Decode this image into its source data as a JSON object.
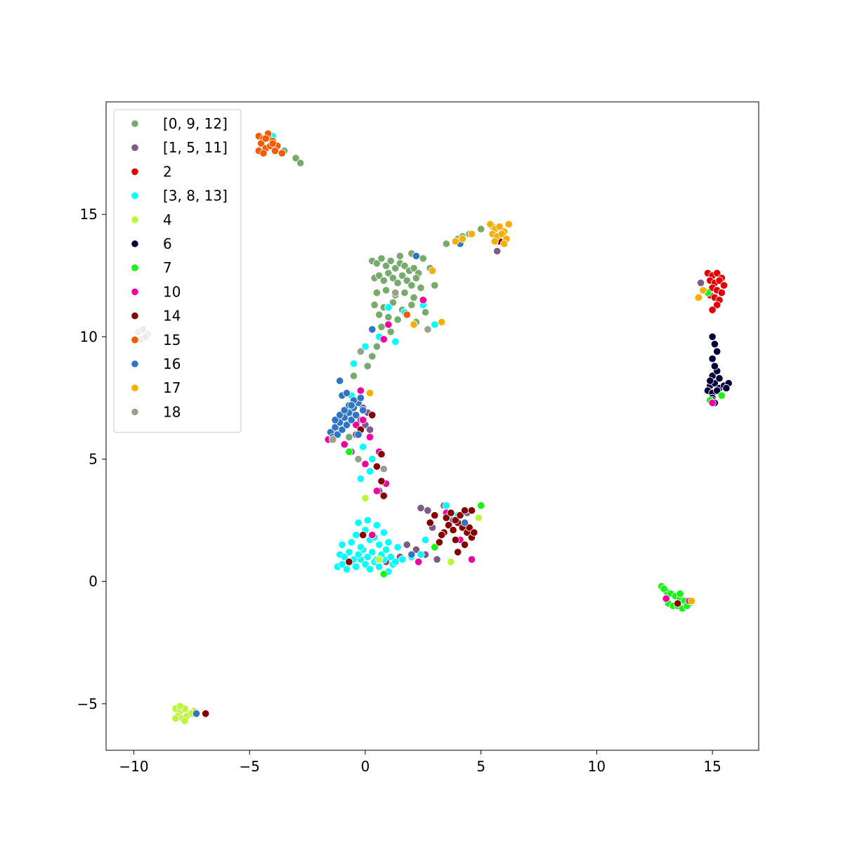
{
  "chart_data": {
    "type": "scatter",
    "title": "",
    "xlabel": "",
    "ylabel": "",
    "xlim": [
      -11.2,
      17.0
    ],
    "ylim": [
      -6.9,
      19.6
    ],
    "grid": false,
    "legend_position": "top-left",
    "x_ticks": [
      -10,
      -5,
      0,
      5,
      10,
      15
    ],
    "x_tick_labels": [
      "−10",
      "−5",
      "0",
      "5",
      "10",
      "15"
    ],
    "y_ticks": [
      -5,
      0,
      5,
      10,
      15
    ],
    "y_tick_labels": [
      "−5",
      "0",
      "5",
      "10",
      "15"
    ],
    "series": [
      {
        "name": "[0, 9, 12]",
        "color": "#77AB6D",
        "x": [
          0.3,
          0.5,
          0.7,
          0.9,
          1.1,
          1.3,
          1.5,
          1.7,
          1.9,
          2.1,
          2.3,
          0.4,
          0.6,
          0.8,
          1.0,
          1.2,
          1.4,
          1.6,
          1.8,
          2.0,
          2.2,
          2.4,
          0.5,
          0.9,
          1.3,
          1.7,
          2.1,
          2.5,
          0.4,
          0.8,
          1.2,
          1.6,
          2.0,
          0.6,
          1.0,
          1.4,
          1.8,
          2.2,
          2.6,
          1.5,
          2.0,
          2.5,
          2.8,
          3.0,
          0.7,
          1.1,
          0.5,
          0.3,
          0.1,
          -0.5,
          3.5,
          4.0,
          4.5,
          5.0,
          5.5,
          -3.0,
          -3.5,
          -2.8,
          4.2,
          -0.7
        ],
        "y": [
          13.1,
          13.0,
          13.2,
          12.9,
          13.1,
          12.8,
          13.0,
          12.9,
          12.7,
          12.8,
          12.6,
          12.4,
          12.5,
          12.3,
          12.6,
          12.4,
          12.2,
          12.5,
          12.3,
          12.1,
          12.4,
          12.0,
          11.8,
          11.9,
          11.7,
          11.8,
          11.6,
          11.5,
          11.3,
          11.2,
          11.4,
          11.1,
          11.3,
          10.9,
          10.8,
          10.7,
          10.9,
          10.6,
          11.0,
          13.3,
          13.4,
          13.2,
          12.8,
          12.1,
          10.4,
          10.2,
          9.6,
          9.2,
          8.8,
          8.4,
          13.8,
          14.0,
          14.2,
          14.4,
          14.5,
          17.3,
          17.6,
          17.1,
          14.1,
          5.9
        ]
      },
      {
        "name": "[1, 5, 11]",
        "color": "#7E5A8A",
        "x": [
          -0.3,
          -0.1,
          0.1,
          -0.5,
          -0.2,
          0.0,
          0.2,
          -0.4,
          0.6,
          2.4,
          2.7,
          3.0,
          3.4,
          3.8,
          1.8,
          2.2,
          2.6,
          3.1,
          0.9,
          1.5,
          14.5,
          5.7,
          2.9,
          4.4,
          -0.6
        ],
        "y": [
          7.3,
          7.1,
          6.9,
          6.8,
          6.6,
          6.4,
          6.2,
          6.0,
          3.7,
          3.0,
          2.9,
          2.7,
          3.1,
          2.5,
          1.5,
          1.3,
          1.1,
          0.9,
          0.8,
          1.0,
          12.2,
          13.5,
          2.2,
          2.8,
          5.3
        ]
      },
      {
        "name": "2",
        "color": "#E00000",
        "x": [
          14.8,
          15.0,
          15.2,
          15.4,
          14.9,
          15.1,
          15.3,
          15.5,
          15.0,
          15.2,
          15.4,
          14.9,
          15.1,
          15.3,
          15.2,
          15.0
        ],
        "y": [
          12.6,
          12.5,
          12.6,
          12.4,
          12.3,
          12.2,
          12.3,
          12.1,
          12.0,
          11.9,
          11.8,
          11.7,
          11.6,
          11.5,
          11.3,
          11.1
        ]
      },
      {
        "name": "[3, 8, 13]",
        "color": "#00FFFF",
        "x": [
          -1.2,
          -1.0,
          -0.8,
          -0.6,
          -0.4,
          -0.2,
          0.0,
          0.2,
          0.4,
          0.6,
          0.8,
          1.0,
          1.2,
          -1.1,
          -0.9,
          -0.7,
          -0.5,
          -0.3,
          -0.1,
          0.1,
          0.3,
          0.5,
          0.7,
          0.9,
          1.1,
          1.3,
          -1.0,
          -0.6,
          -0.2,
          0.2,
          0.6,
          1.0,
          1.4,
          -0.4,
          0.0,
          0.4,
          0.8,
          1.6,
          2.0,
          2.4,
          -0.3,
          0.1,
          0.5,
          -0.2,
          0.2,
          0.0,
          -0.5,
          0.6,
          1.0,
          1.3,
          1.7,
          2.5,
          3.0,
          3.5,
          4.0,
          -0.1,
          0.3,
          -0.6,
          -0.8,
          -4.0,
          1.4,
          2.6
        ],
        "y": [
          0.6,
          0.7,
          0.5,
          0.8,
          0.6,
          0.9,
          0.7,
          0.5,
          0.8,
          0.6,
          0.9,
          0.4,
          0.7,
          1.1,
          1.0,
          1.2,
          0.9,
          1.1,
          1.3,
          1.0,
          1.2,
          0.9,
          1.1,
          1.3,
          1.0,
          0.8,
          1.5,
          1.6,
          1.4,
          1.7,
          1.5,
          1.6,
          1.4,
          1.9,
          2.1,
          1.8,
          2.0,
          0.9,
          1.0,
          1.1,
          2.4,
          2.5,
          2.3,
          4.2,
          4.5,
          9.6,
          8.9,
          10.0,
          11.2,
          9.8,
          11.0,
          11.3,
          10.5,
          3.1,
          2.7,
          5.5,
          5.0,
          7.6,
          6.8,
          18.2,
          1.4,
          1.7
        ]
      },
      {
        "name": "4",
        "color": "#BDF53D",
        "x": [
          -8.2,
          -8.0,
          -7.8,
          -7.6,
          -7.4,
          -8.1,
          -7.9,
          -7.7,
          -7.5,
          -8.0,
          -7.8,
          -8.2,
          0.0,
          0.6,
          3.7,
          4.9
        ],
        "y": [
          -5.2,
          -5.3,
          -5.2,
          -5.4,
          -5.3,
          -5.5,
          -5.6,
          -5.5,
          -5.4,
          -5.1,
          -5.7,
          -5.6,
          3.4,
          0.9,
          0.8,
          2.6
        ]
      },
      {
        "name": "6",
        "color": "#02003A",
        "x": [
          14.9,
          15.1,
          15.3,
          15.5,
          15.7,
          14.8,
          15.0,
          15.2,
          15.4,
          15.6,
          15.0,
          15.2,
          15.1,
          15.3,
          15.0,
          15.2,
          15.1,
          15.0,
          15.0,
          15.0,
          15.1,
          14.9
        ],
        "y": [
          8.0,
          8.1,
          7.9,
          8.0,
          8.1,
          7.8,
          7.7,
          7.8,
          7.6,
          7.9,
          8.4,
          8.6,
          8.8,
          8.3,
          9.1,
          9.4,
          9.7,
          10.0,
          7.5,
          7.4,
          7.3,
          8.2
        ]
      },
      {
        "name": "7",
        "color": "#14F514",
        "x": [
          12.8,
          13.0,
          13.2,
          13.4,
          13.6,
          13.8,
          14.0,
          13.1,
          13.3,
          13.5,
          13.7,
          13.9,
          12.9,
          13.6,
          14.8,
          15.4,
          5.0,
          0.8,
          3.0,
          14.9,
          -0.7
        ],
        "y": [
          -0.2,
          -0.4,
          -0.5,
          -0.6,
          -0.7,
          -0.8,
          -0.9,
          -0.9,
          -1.0,
          -1.0,
          -1.1,
          -1.0,
          -0.3,
          -0.5,
          11.8,
          7.6,
          3.1,
          0.3,
          1.4,
          7.4,
          5.3
        ]
      },
      {
        "name": "10",
        "color": "#F000A0",
        "x": [
          -1.6,
          -1.3,
          -0.9,
          -0.4,
          0.2,
          0.6,
          0.9,
          0.5,
          0.0,
          0.8,
          13.0,
          14.0,
          15.0,
          -0.2,
          1.0,
          2.5,
          3.5,
          4.1,
          4.6,
          0.3,
          -0.1,
          2.3,
          4.4
        ],
        "y": [
          5.8,
          6.1,
          5.6,
          6.4,
          5.9,
          5.3,
          4.0,
          3.7,
          4.8,
          9.9,
          -0.7,
          -0.8,
          7.3,
          7.8,
          10.5,
          11.5,
          2.8,
          1.7,
          0.9,
          1.9,
          6.6,
          0.8,
          2.1
        ]
      },
      {
        "name": "14",
        "color": "#860000",
        "x": [
          3.4,
          3.6,
          3.8,
          4.0,
          4.2,
          4.4,
          4.6,
          3.5,
          3.7,
          3.9,
          4.1,
          4.3,
          4.5,
          3.3,
          3.2,
          3.9,
          4.3,
          4.7,
          2.8,
          3.0,
          0.7,
          0.5,
          0.3,
          0.8,
          -0.1,
          0.7,
          -0.2,
          13.5,
          5.8,
          -0.7,
          -6.9,
          4.0,
          4.6
        ],
        "y": [
          2.0,
          2.3,
          2.1,
          2.4,
          2.2,
          2.0,
          1.8,
          2.6,
          2.8,
          2.5,
          2.7,
          2.9,
          2.2,
          1.9,
          1.6,
          1.7,
          1.5,
          2.0,
          2.4,
          2.7,
          5.2,
          4.7,
          6.8,
          3.5,
          1.9,
          4.1,
          6.2,
          -0.9,
          13.9,
          0.8,
          -5.4,
          1.2,
          2.9
        ]
      },
      {
        "name": "15",
        "color": "#F55A00",
        "x": [
          -4.6,
          -4.4,
          -4.2,
          -4.0,
          -3.8,
          -4.5,
          -4.3,
          -4.1,
          -3.9,
          -4.6,
          -4.4,
          -4.2,
          -3.6,
          -4.3,
          -4.0,
          1.8
        ],
        "y": [
          18.2,
          18.1,
          18.2,
          18.0,
          17.8,
          17.9,
          17.7,
          17.8,
          17.6,
          17.6,
          17.5,
          18.3,
          17.5,
          18.1,
          17.9,
          10.9
        ]
      },
      {
        "name": "16",
        "color": "#2F75C5",
        "x": [
          -1.5,
          -1.3,
          -1.1,
          -0.9,
          -0.7,
          -0.5,
          -0.3,
          -0.1,
          -1.4,
          -1.2,
          -1.0,
          -0.8,
          -0.6,
          -0.4,
          -0.2,
          -1.3,
          -1.1,
          -0.9,
          -0.7,
          -0.5,
          -1.0,
          -0.8,
          -0.6,
          -0.3,
          4.1,
          0.3,
          2.0,
          2.2,
          4.3,
          -7.3,
          -1.1
        ],
        "y": [
          6.1,
          6.3,
          6.5,
          6.7,
          6.9,
          7.1,
          7.3,
          7.0,
          5.9,
          6.0,
          6.2,
          6.4,
          6.6,
          6.8,
          7.5,
          6.6,
          6.8,
          7.0,
          7.2,
          7.4,
          7.6,
          7.7,
          7.2,
          6.0,
          13.8,
          10.3,
          1.1,
          13.3,
          2.4,
          -5.4,
          8.2
        ]
      },
      {
        "name": "17",
        "color": "#F7AE00",
        "x": [
          5.4,
          5.6,
          5.8,
          6.0,
          6.2,
          5.5,
          5.7,
          5.9,
          6.1,
          5.6,
          5.8,
          6.0,
          4.2,
          4.6,
          3.9,
          14.6,
          14.1,
          14.4,
          2.1,
          2.9,
          3.3,
          0.2
        ],
        "y": [
          14.6,
          14.4,
          14.5,
          14.3,
          14.6,
          14.2,
          14.1,
          14.2,
          14.0,
          13.9,
          14.5,
          13.8,
          14.0,
          14.2,
          13.9,
          11.9,
          -0.8,
          11.6,
          10.5,
          12.7,
          10.6,
          7.7
        ]
      },
      {
        "name": "18",
        "color": "#9E9E8C",
        "x": [
          -9.8,
          -9.6,
          -9.4,
          -9.7,
          -9.5,
          -0.3,
          0.8,
          1.3,
          -0.2,
          2.7,
          -1.4
        ],
        "y": [
          10.2,
          10.3,
          10.1,
          9.9,
          10.0,
          5.0,
          4.6,
          11.8,
          9.4,
          10.3,
          5.8
        ]
      }
    ]
  }
}
